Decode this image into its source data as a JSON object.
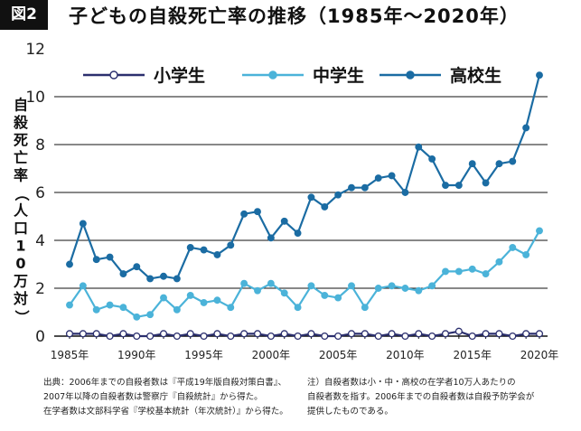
{
  "badge": "図2",
  "title": "子どもの自殺死亡率の推移（1985年〜2020年）",
  "notes_left": [
    "出典：2006年までの自殺者数は『平成19年版自殺対策白書』、",
    "2007年以降の自殺者数は警察庁『自殺統計』から得た。",
    "在学者数は文部科学省『学校基本統計（年次統計）』から得た。"
  ],
  "notes_right": [
    "注）自殺者数は小・中・高校の在学者10万人あたりの",
    "自殺者数を指す。2006年までの自殺者数は自殺予防学会が",
    "提供したものである。"
  ],
  "colors": {
    "elementary": "#2b2f6e",
    "junior_high": "#4bb3d9",
    "high": "#1b6ca3",
    "grid": "#111111"
  },
  "chart_data": {
    "type": "line",
    "title": "子どもの自殺死亡率の推移（1985年〜2020年）",
    "ylabel": "自殺死亡率（人口10万対）",
    "xlabel": "",
    "ylim": [
      0,
      12
    ],
    "yticks": [
      "0",
      "2",
      "4",
      "6",
      "8",
      "10",
      "12"
    ],
    "xticks": [
      "1985年",
      "1990年",
      "1995年",
      "2000年",
      "2005年",
      "2010年",
      "2015年",
      "2020年"
    ],
    "grid": "horizontal",
    "legend_position": "top",
    "x": [
      1985,
      1986,
      1987,
      1988,
      1989,
      1990,
      1991,
      1992,
      1993,
      1994,
      1995,
      1996,
      1997,
      1998,
      1999,
      2000,
      2001,
      2002,
      2003,
      2004,
      2005,
      2006,
      2007,
      2008,
      2009,
      2010,
      2011,
      2012,
      2013,
      2014,
      2015,
      2016,
      2017,
      2018,
      2019,
      2020
    ],
    "series": [
      {
        "name": "小学生",
        "marker": "open-circle",
        "values": [
          0.1,
          0.1,
          0.1,
          0.0,
          0.1,
          0.0,
          0.0,
          0.1,
          0.0,
          0.1,
          0.0,
          0.1,
          0.0,
          0.1,
          0.1,
          0.0,
          0.1,
          0.0,
          0.1,
          0.0,
          0.0,
          0.1,
          0.1,
          0.0,
          0.1,
          0.0,
          0.1,
          0.0,
          0.1,
          0.2,
          0.0,
          0.1,
          0.1,
          0.0,
          0.1,
          0.1
        ]
      },
      {
        "name": "中学生",
        "marker": "filled-circle",
        "values": [
          1.3,
          2.1,
          1.1,
          1.3,
          1.2,
          0.8,
          0.9,
          1.6,
          1.1,
          1.7,
          1.4,
          1.5,
          1.2,
          2.2,
          1.9,
          2.2,
          1.8,
          1.2,
          2.1,
          1.7,
          1.6,
          2.1,
          1.2,
          2.0,
          2.1,
          2.0,
          1.9,
          2.1,
          2.7,
          2.7,
          2.8,
          2.6,
          3.1,
          3.7,
          3.4,
          4.4
        ]
      },
      {
        "name": "高校生",
        "marker": "filled-circle",
        "values": [
          3.0,
          4.7,
          3.2,
          3.3,
          2.6,
          2.9,
          2.4,
          2.5,
          2.4,
          3.7,
          3.6,
          3.4,
          3.8,
          5.1,
          5.2,
          4.1,
          4.8,
          4.3,
          5.8,
          5.4,
          5.9,
          6.2,
          6.2,
          6.6,
          6.7,
          6.0,
          7.9,
          7.4,
          6.3,
          6.3,
          7.2,
          6.4,
          7.2,
          7.3,
          8.7,
          10.9
        ]
      }
    ]
  }
}
